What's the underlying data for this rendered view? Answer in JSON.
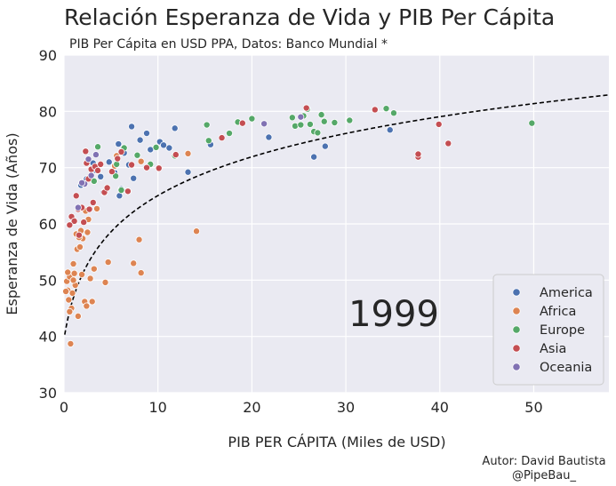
{
  "chart_data": {
    "type": "scatter",
    "title": "Relación Esperanza de Vida y PIB Per Cápita",
    "subtitle": "PIB Per Cápita en USD PPA, Datos: Banco Mundial *",
    "xlabel": "PIB PER CÁPITA (Miles de USD)",
    "ylabel": "Esperanza de Vida (Años)",
    "xlim": [
      0,
      58
    ],
    "ylim": [
      30,
      90
    ],
    "xticks": [
      0,
      10,
      20,
      30,
      40,
      50
    ],
    "yticks": [
      30,
      40,
      50,
      60,
      70,
      80,
      90
    ],
    "grid": true,
    "year_label": "1999",
    "legend_position": "lower-right",
    "series": [
      {
        "name": "America",
        "color": "#4c72b0",
        "points": [
          [
            7.2,
            77.3
          ],
          [
            8.8,
            76.1
          ],
          [
            10.2,
            74.6
          ],
          [
            11.2,
            73.5
          ],
          [
            11.8,
            77.0
          ],
          [
            15.6,
            74.1
          ],
          [
            21.8,
            75.4
          ],
          [
            26.6,
            71.9
          ],
          [
            27.8,
            73.8
          ],
          [
            34.7,
            76.7
          ],
          [
            5.8,
            74.2
          ],
          [
            6.4,
            72.6
          ],
          [
            7.4,
            68.1
          ],
          [
            8.1,
            74.9
          ],
          [
            9.2,
            73.2
          ],
          [
            10.6,
            74.0
          ],
          [
            13.2,
            69.2
          ],
          [
            4.8,
            71.0
          ],
          [
            5.4,
            69.1
          ],
          [
            6.1,
            66.2
          ],
          [
            3.9,
            68.4
          ],
          [
            3.1,
            70.8
          ],
          [
            2.4,
            68.0
          ],
          [
            1.8,
            66.9
          ],
          [
            6.9,
            70.5
          ],
          [
            4.2,
            65.6
          ],
          [
            5.9,
            65.0
          ],
          [
            3.4,
            69.5
          ]
        ]
      },
      {
        "name": "Africa",
        "color": "#dd8452",
        "points": [
          [
            0.3,
            49.8
          ],
          [
            0.4,
            48.2
          ],
          [
            0.5,
            46.5
          ],
          [
            0.6,
            50.6
          ],
          [
            0.7,
            38.7
          ],
          [
            0.8,
            45.0
          ],
          [
            0.9,
            47.7
          ],
          [
            1.0,
            52.9
          ],
          [
            1.1,
            51.2
          ],
          [
            1.2,
            49.1
          ],
          [
            1.3,
            58.2
          ],
          [
            1.4,
            55.5
          ],
          [
            1.5,
            43.6
          ],
          [
            1.7,
            55.9
          ],
          [
            1.8,
            58.8
          ],
          [
            2.0,
            57.4
          ],
          [
            2.2,
            46.2
          ],
          [
            2.4,
            45.4
          ],
          [
            2.5,
            58.5
          ],
          [
            2.8,
            50.3
          ],
          [
            3.0,
            46.2
          ],
          [
            3.2,
            52.0
          ],
          [
            3.5,
            62.7
          ],
          [
            4.4,
            49.6
          ],
          [
            4.7,
            53.2
          ],
          [
            5.4,
            70.3
          ],
          [
            5.6,
            72.1
          ],
          [
            6.8,
            65.8
          ],
          [
            7.4,
            53.0
          ],
          [
            8.0,
            57.2
          ],
          [
            8.2,
            51.3
          ],
          [
            8.2,
            71.1
          ],
          [
            13.2,
            72.5
          ],
          [
            14.1,
            58.7
          ],
          [
            0.2,
            48.0
          ],
          [
            0.6,
            44.4
          ],
          [
            1.0,
            50.0
          ],
          [
            1.6,
            57.6
          ],
          [
            2.6,
            60.8
          ],
          [
            1.9,
            51.0
          ],
          [
            0.4,
            51.4
          ],
          [
            2.3,
            62.3
          ]
        ]
      },
      {
        "name": "Europe",
        "color": "#55a868",
        "points": [
          [
            3.6,
            73.7
          ],
          [
            5.5,
            68.5
          ],
          [
            5.6,
            70.6
          ],
          [
            6.4,
            73.5
          ],
          [
            7.8,
            72.2
          ],
          [
            9.8,
            73.6
          ],
          [
            11.8,
            72.1
          ],
          [
            15.2,
            77.6
          ],
          [
            15.4,
            74.8
          ],
          [
            17.6,
            76.1
          ],
          [
            18.5,
            78.1
          ],
          [
            20.0,
            78.7
          ],
          [
            24.3,
            78.9
          ],
          [
            24.6,
            77.4
          ],
          [
            25.2,
            77.6
          ],
          [
            25.5,
            79.2
          ],
          [
            26.2,
            77.7
          ],
          [
            26.6,
            76.4
          ],
          [
            27.0,
            76.2
          ],
          [
            27.4,
            79.4
          ],
          [
            27.7,
            78.2
          ],
          [
            28.8,
            78.0
          ],
          [
            30.4,
            78.4
          ],
          [
            34.3,
            80.5
          ],
          [
            35.1,
            79.7
          ],
          [
            49.8,
            77.9
          ],
          [
            3.2,
            67.6
          ],
          [
            6.1,
            66.0
          ],
          [
            9.2,
            70.6
          ],
          [
            25.9,
            80.4
          ]
        ]
      },
      {
        "name": "Asia",
        "color": "#c44e52",
        "points": [
          [
            0.8,
            61.3
          ],
          [
            1.1,
            60.5
          ],
          [
            1.3,
            65.0
          ],
          [
            1.5,
            62.6
          ],
          [
            1.9,
            62.9
          ],
          [
            2.1,
            60.3
          ],
          [
            2.3,
            72.9
          ],
          [
            2.6,
            68.0
          ],
          [
            2.9,
            69.7
          ],
          [
            3.1,
            63.8
          ],
          [
            3.3,
            70.2
          ],
          [
            3.9,
            70.6
          ],
          [
            4.3,
            65.6
          ],
          [
            5.1,
            69.3
          ],
          [
            5.7,
            71.6
          ],
          [
            6.1,
            72.8
          ],
          [
            6.8,
            65.8
          ],
          [
            7.2,
            70.5
          ],
          [
            8.8,
            70.0
          ],
          [
            10.1,
            69.9
          ],
          [
            11.9,
            72.3
          ],
          [
            16.8,
            75.3
          ],
          [
            19.0,
            77.9
          ],
          [
            25.8,
            80.6
          ],
          [
            33.1,
            80.3
          ],
          [
            37.7,
            71.9
          ],
          [
            37.7,
            72.4
          ],
          [
            39.9,
            77.7
          ],
          [
            40.9,
            74.3
          ],
          [
            0.6,
            59.8
          ],
          [
            1.6,
            58.0
          ],
          [
            2.7,
            62.6
          ],
          [
            3.6,
            69.5
          ],
          [
            2.4,
            70.8
          ],
          [
            4.6,
            66.4
          ]
        ]
      },
      {
        "name": "Oceania",
        "color": "#8172b3",
        "points": [
          [
            1.5,
            62.9
          ],
          [
            2.2,
            67.1
          ],
          [
            2.9,
            68.6
          ],
          [
            3.4,
            72.3
          ],
          [
            25.2,
            79.0
          ],
          [
            21.3,
            77.8
          ],
          [
            1.9,
            67.3
          ],
          [
            2.6,
            71.5
          ]
        ]
      }
    ],
    "trend_line": {
      "model": "logarithmic",
      "params": {
        "a": 39.5,
        "b": 10.65
      },
      "style": "dashed",
      "color": "#000000"
    }
  },
  "credit": {
    "line1": "Autor: David Bautista",
    "line2": "@PipeBau_"
  }
}
